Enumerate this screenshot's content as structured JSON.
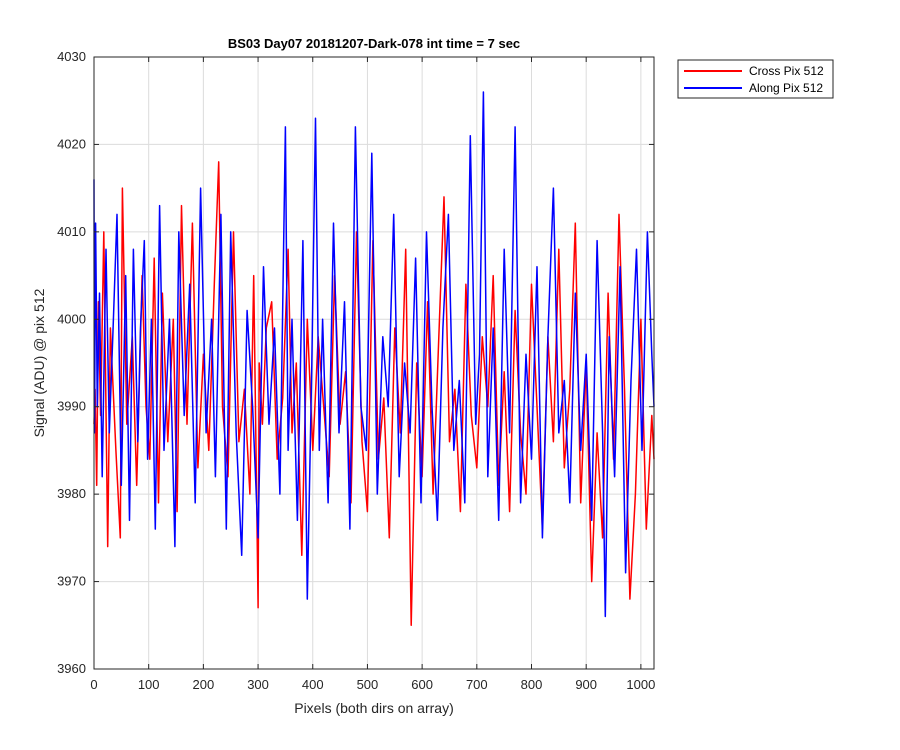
{
  "chart_data": {
    "type": "line",
    "title": "BS03 Day07 20181207-Dark-078 int time = 7 sec",
    "xlabel": "Pixels (both dirs on array)",
    "ylabel": "Signal (ADU) @ pix 512",
    "xlim": [
      0,
      1024
    ],
    "ylim": [
      3960,
      4030
    ],
    "xticks": [
      0,
      100,
      200,
      300,
      400,
      500,
      600,
      700,
      800,
      900,
      1000
    ],
    "yticks": [
      3960,
      3970,
      3980,
      3990,
      4000,
      4010,
      4020,
      4030
    ],
    "grid": true,
    "legend_position": "outside top-right",
    "series": [
      {
        "name": "Cross Pix 512",
        "color": "#ff0000",
        "x": [
          0,
          2,
          5,
          8,
          12,
          18,
          25,
          30,
          40,
          48,
          52,
          60,
          70,
          78,
          88,
          95,
          102,
          110,
          118,
          125,
          135,
          145,
          152,
          160,
          170,
          180,
          190,
          200,
          210,
          220,
          228,
          235,
          245,
          255,
          265,
          275,
          285,
          292,
          300,
          302,
          308,
          315,
          325,
          335,
          345,
          355,
          362,
          370,
          380,
          390,
          400,
          410,
          420,
          430,
          440,
          450,
          460,
          470,
          480,
          490,
          500,
          510,
          520,
          530,
          540,
          550,
          560,
          570,
          580,
          590,
          600,
          610,
          620,
          630,
          640,
          650,
          660,
          670,
          680,
          690,
          700,
          710,
          720,
          730,
          740,
          750,
          760,
          770,
          780,
          790,
          800,
          810,
          820,
          830,
          840,
          850,
          860,
          870,
          880,
          890,
          900,
          910,
          920,
          930,
          940,
          950,
          960,
          970,
          980,
          990,
          1000,
          1010,
          1020,
          1024
        ],
        "y": [
          3988,
          3992,
          3981,
          4002,
          3989,
          4010,
          3974,
          3999,
          3985,
          3975,
          4015,
          3988,
          3998,
          3981,
          4005,
          3990,
          3984,
          4007,
          3979,
          4003,
          3986,
          4000,
          3978,
          4013,
          3988,
          4011,
          3983,
          3996,
          3985,
          4004,
          4018,
          3990,
          3982,
          4010,
          3986,
          3992,
          3980,
          4005,
          3967,
          3995,
          3988,
          3999,
          4002,
          3984,
          3991,
          4008,
          3987,
          3995,
          3973,
          4000,
          3985,
          3998,
          3990,
          3982,
          4005,
          3988,
          3994,
          3979,
          4010,
          3986,
          3978,
          4009,
          3984,
          3991,
          3975,
          3999,
          3987,
          4008,
          3965,
          3995,
          3982,
          4002,
          3980,
          3997,
          4014,
          3986,
          3992,
          3978,
          4004,
          3989,
          3983,
          3998,
          3990,
          4005,
          3981,
          3994,
          3978,
          4001,
          3987,
          3980,
          4004,
          3990,
          3976,
          3998,
          3986,
          4008,
          3983,
          3992,
          4011,
          3979,
          3995,
          3970,
          3987,
          3975,
          4003,
          3984,
          4012,
          3992,
          3968,
          3980,
          4000,
          3976,
          3989,
          3984
        ]
      },
      {
        "name": "Along Pix 512",
        "color": "#0000ff",
        "x": [
          0,
          1,
          3,
          6,
          10,
          15,
          22,
          28,
          35,
          42,
          50,
          58,
          65,
          72,
          80,
          85,
          92,
          98,
          105,
          112,
          120,
          128,
          138,
          148,
          155,
          165,
          175,
          185,
          195,
          205,
          215,
          222,
          232,
          242,
          250,
          260,
          270,
          280,
          290,
          300,
          310,
          320,
          330,
          340,
          350,
          355,
          362,
          372,
          382,
          390,
          398,
          405,
          412,
          418,
          428,
          438,
          448,
          458,
          468,
          478,
          488,
          498,
          508,
          518,
          528,
          538,
          548,
          558,
          568,
          578,
          588,
          598,
          608,
          618,
          628,
          638,
          648,
          658,
          668,
          678,
          688,
          698,
          705,
          712,
          720,
          730,
          740,
          750,
          760,
          770,
          780,
          790,
          800,
          810,
          820,
          830,
          840,
          850,
          860,
          870,
          880,
          890,
          900,
          910,
          920,
          930,
          935,
          942,
          952,
          962,
          972,
          982,
          992,
          1002,
          1012,
          1020,
          1024
        ],
        "y": [
          4016,
          3987,
          4011,
          3990,
          4003,
          3982,
          4008,
          3987,
          3999,
          4012,
          3981,
          4005,
          3977,
          4008,
          3986,
          3999,
          4009,
          3984,
          4000,
          3976,
          4013,
          3985,
          4000,
          3974,
          4010,
          3989,
          4004,
          3979,
          4015,
          3987,
          4000,
          3982,
          4012,
          3976,
          4010,
          3987,
          3973,
          4001,
          3990,
          3975,
          4006,
          3988,
          3999,
          3980,
          4022,
          3985,
          4000,
          3977,
          4009,
          3968,
          3994,
          4023,
          3985,
          4000,
          3979,
          4011,
          3987,
          4002,
          3976,
          4022,
          3990,
          3985,
          4019,
          3980,
          3998,
          3990,
          4012,
          3982,
          3995,
          3987,
          4007,
          3979,
          4010,
          3990,
          3977,
          3999,
          4012,
          3985,
          3993,
          3979,
          4021,
          3988,
          3996,
          4026,
          3982,
          3999,
          3977,
          4008,
          3987,
          4022,
          3979,
          3996,
          3984,
          4006,
          3975,
          3998,
          4015,
          3987,
          3993,
          3979,
          4003,
          3985,
          3996,
          3977,
          4009,
          3987,
          3966,
          3998,
          3982,
          4006,
          3971,
          3993,
          4008,
          3985,
          4010,
          3996,
          3990
        ]
      }
    ]
  }
}
